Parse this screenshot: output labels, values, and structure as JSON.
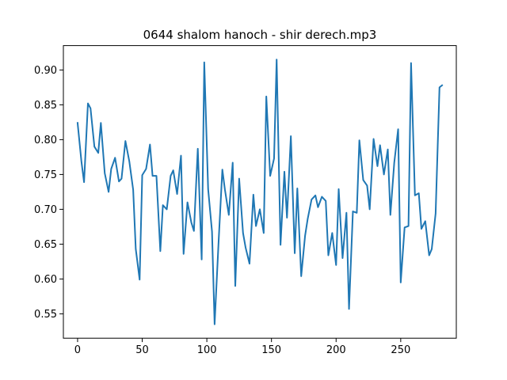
{
  "chart_data": {
    "type": "line",
    "title": "0644 shalom hanoch - shir derech.mp3",
    "xlabel": "",
    "ylabel": "",
    "xlim": [
      -11,
      293
    ],
    "ylim": [
      0.515,
      0.935
    ],
    "xticks": [
      0,
      50,
      100,
      150,
      200,
      250
    ],
    "yticks": [
      0.55,
      0.6,
      0.65,
      0.7,
      0.75,
      0.8,
      0.85,
      0.9
    ],
    "ytick_labels": [
      "0.55",
      "0.60",
      "0.65",
      "0.70",
      "0.75",
      "0.80",
      "0.85",
      "0.90"
    ],
    "grid": false,
    "legend": "none",
    "series": [
      {
        "color": "#1f77b4",
        "x": [
          0,
          3,
          5,
          8,
          10,
          13,
          16,
          18,
          21,
          24,
          26,
          29,
          32,
          34,
          37,
          40,
          43,
          45,
          48,
          50,
          53,
          56,
          58,
          61,
          64,
          66,
          69,
          72,
          74,
          77,
          80,
          82,
          85,
          88,
          90,
          93,
          96,
          98,
          101,
          104,
          106,
          109,
          112,
          114,
          117,
          120,
          122,
          125,
          128,
          130,
          133,
          136,
          138,
          141,
          144,
          146,
          149,
          152,
          154,
          157,
          160,
          162,
          165,
          168,
          170,
          173,
          176,
          178,
          181,
          184,
          186,
          189,
          192,
          194,
          197,
          200,
          202,
          205,
          208,
          210,
          213,
          216,
          218,
          221,
          224,
          226,
          229,
          232,
          234,
          237,
          240,
          242,
          245,
          248,
          250,
          253,
          256,
          258,
          261,
          264,
          266,
          269,
          272,
          274,
          277,
          280,
          282
        ],
        "values": [
          0.824,
          0.768,
          0.739,
          0.852,
          0.845,
          0.79,
          0.781,
          0.824,
          0.752,
          0.725,
          0.758,
          0.774,
          0.74,
          0.744,
          0.798,
          0.769,
          0.728,
          0.643,
          0.599,
          0.749,
          0.758,
          0.793,
          0.748,
          0.748,
          0.64,
          0.706,
          0.7,
          0.748,
          0.756,
          0.722,
          0.777,
          0.636,
          0.71,
          0.681,
          0.669,
          0.787,
          0.628,
          0.911,
          0.729,
          0.668,
          0.535,
          0.65,
          0.757,
          0.728,
          0.692,
          0.767,
          0.59,
          0.744,
          0.666,
          0.645,
          0.622,
          0.721,
          0.676,
          0.7,
          0.666,
          0.862,
          0.748,
          0.773,
          0.915,
          0.649,
          0.754,
          0.688,
          0.805,
          0.637,
          0.73,
          0.604,
          0.662,
          0.686,
          0.714,
          0.72,
          0.703,
          0.718,
          0.712,
          0.634,
          0.666,
          0.62,
          0.729,
          0.63,
          0.695,
          0.557,
          0.697,
          0.695,
          0.799,
          0.742,
          0.734,
          0.7,
          0.801,
          0.762,
          0.792,
          0.75,
          0.786,
          0.692,
          0.767,
          0.815,
          0.595,
          0.674,
          0.676,
          0.91,
          0.72,
          0.723,
          0.672,
          0.683,
          0.634,
          0.643,
          0.694,
          0.875,
          0.878
        ]
      }
    ]
  }
}
